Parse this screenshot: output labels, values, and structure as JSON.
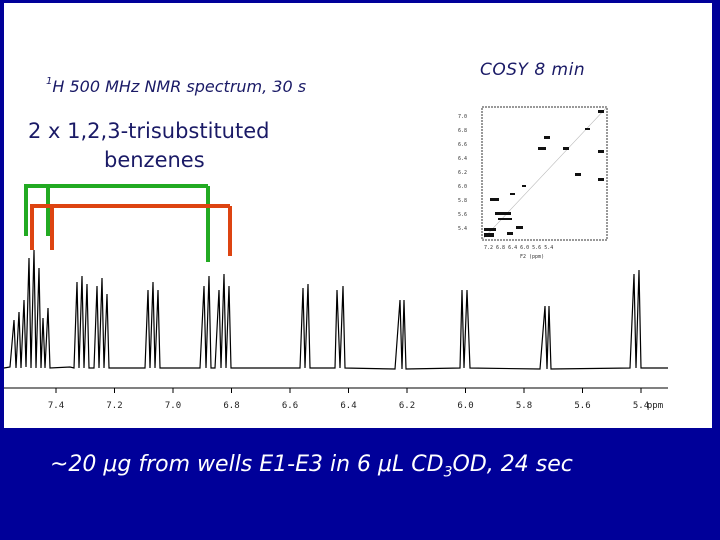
{
  "nmr_title": {
    "nucleus": "H",
    "mass": "1",
    "rest": " 500 MHz NMR spectrum, 30 s"
  },
  "cosy_title": "COSY  8 min",
  "benzene_label": {
    "line1": "2 x 1,2,3-trisubstituted",
    "line2": "benzenes"
  },
  "ppm_axis": {
    "ticks": [
      "7.4",
      "7.2",
      "7.0",
      "6.8",
      "6.6",
      "6.4",
      "6.2",
      "6.0",
      "5.8",
      "5.6",
      "5.4"
    ],
    "unit": "ppm"
  },
  "caption": {
    "part1": "~20 ",
    "mu1": "μ",
    "part2": "g from wells E1-E3 in 6 ",
    "mu2": "μ",
    "part3": "L CD",
    "sub": "3",
    "part4": "OD, 24 sec"
  },
  "bracket_colors": {
    "green": "#22aa22",
    "red": "#dd4411"
  },
  "colors": {
    "background": "#000099",
    "panel": "#ffffff"
  }
}
